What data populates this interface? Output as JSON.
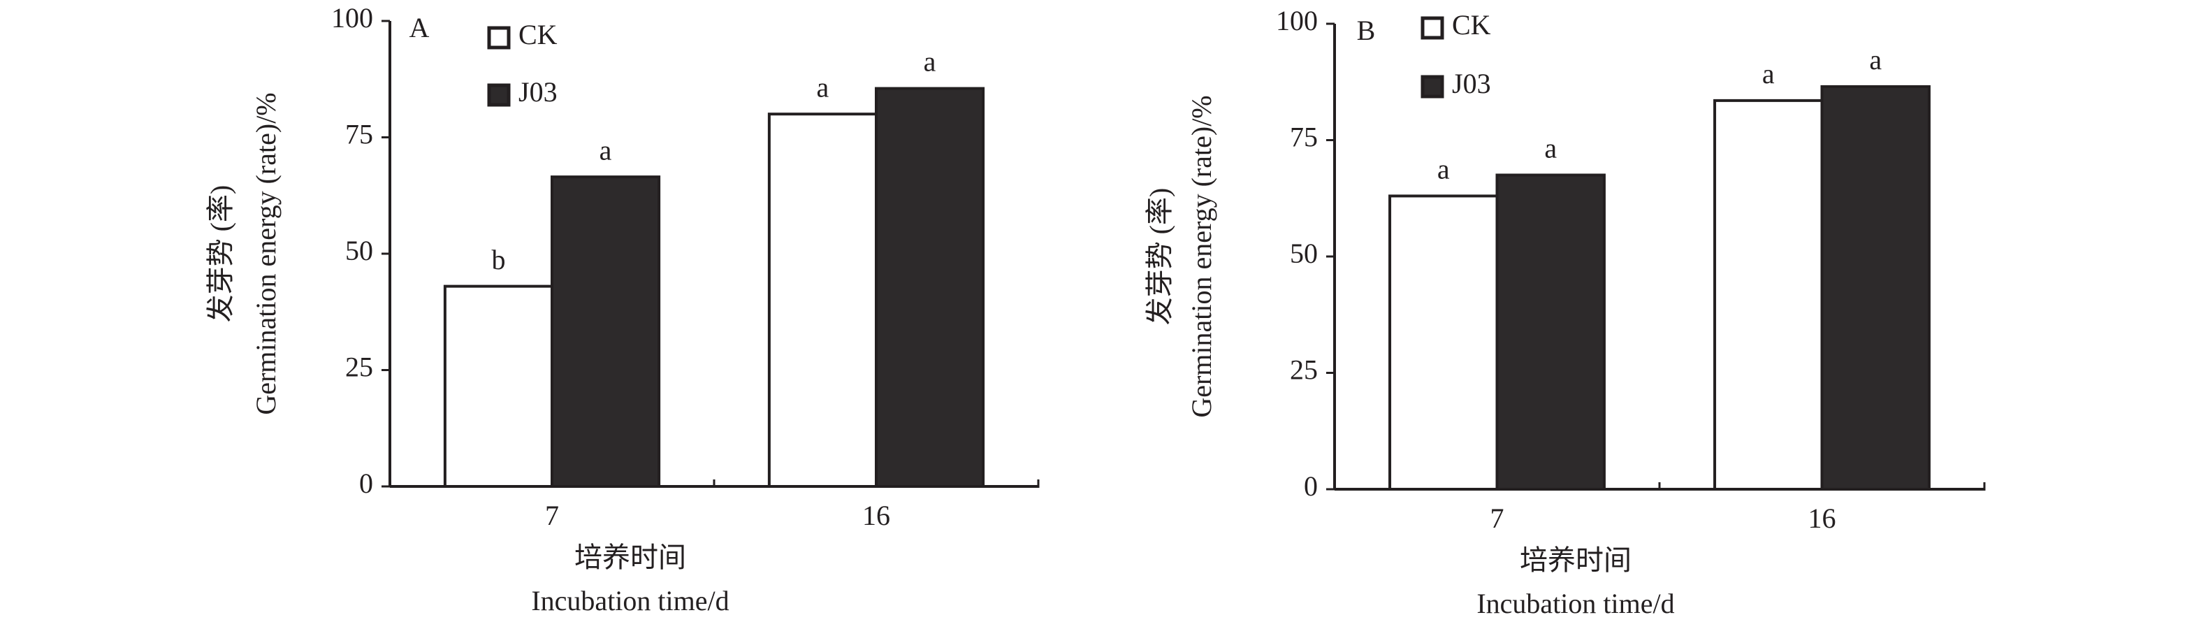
{
  "chart_data": [
    {
      "type": "bar",
      "panel": "A",
      "ylabel": [
        "发芽势 (率)",
        "Germination energy (rate)/%"
      ],
      "xlabel": [
        "培养时间",
        "Incubation time/d"
      ],
      "categories": [
        "7",
        "16"
      ],
      "series": [
        {
          "name": "CK",
          "color": "#ffffff",
          "values": [
            43,
            80
          ],
          "letters": [
            "b",
            "a"
          ]
        },
        {
          "name": "J03",
          "color": "#2d2a2b",
          "values": [
            66.5,
            85.5
          ],
          "letters": [
            "a",
            "a"
          ]
        }
      ],
      "ylim": [
        0,
        100
      ],
      "yticks": [
        0,
        25,
        50,
        75,
        100
      ]
    },
    {
      "type": "bar",
      "panel": "B",
      "ylabel": [
        "发芽势 (率)",
        "Germination energy (rate)/%"
      ],
      "xlabel": [
        "培养时间",
        "Incubation time/d"
      ],
      "categories": [
        "7",
        "16"
      ],
      "series": [
        {
          "name": "CK",
          "color": "#ffffff",
          "values": [
            63,
            83.5
          ],
          "letters": [
            "a",
            "a"
          ]
        },
        {
          "name": "J03",
          "color": "#2d2a2b",
          "values": [
            67.5,
            86.5
          ],
          "letters": [
            "a",
            "a"
          ]
        }
      ],
      "ylim": [
        0,
        100
      ],
      "yticks": [
        0,
        25,
        50,
        75,
        100
      ]
    }
  ]
}
